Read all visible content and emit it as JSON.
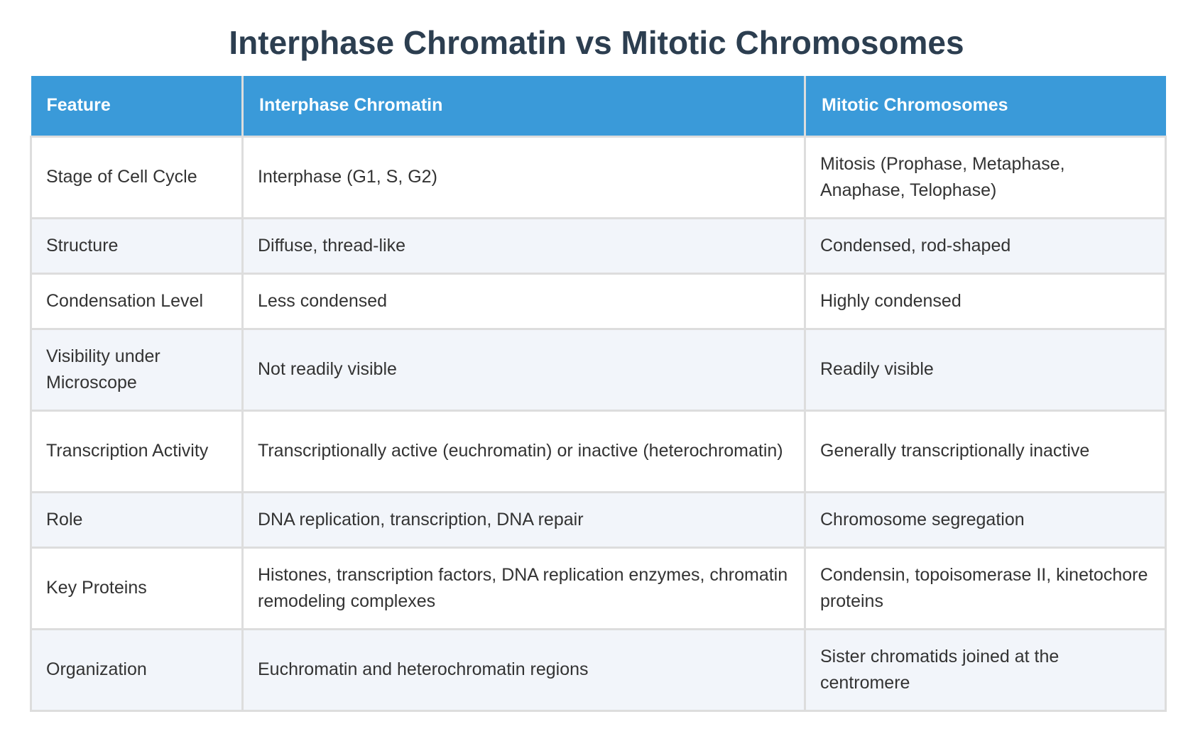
{
  "title": "Interphase Chromatin vs Mitotic Chromosomes",
  "table": {
    "headers": [
      "Feature",
      "Interphase Chromatin",
      "Mitotic Chromosomes"
    ],
    "rows": [
      [
        "Stage of Cell Cycle",
        "Interphase (G1, S, G2)",
        "Mitosis (Prophase, Metaphase, Anaphase, Telophase)"
      ],
      [
        "Structure",
        "Diffuse, thread-like",
        "Condensed, rod-shaped"
      ],
      [
        "Condensation Level",
        "Less condensed",
        "Highly condensed"
      ],
      [
        "Visibility under Microscope",
        "Not readily visible",
        "Readily visible"
      ],
      [
        "Transcription Activity",
        "Transcriptionally active (euchromatin) or inactive (heterochromatin)",
        "Generally transcriptionally inactive"
      ],
      [
        "Role",
        "DNA replication, transcription, DNA repair",
        "Chromosome segregation"
      ],
      [
        "Key Proteins",
        "Histones, transcription factors, DNA replication enzymes, chromatin remodeling complexes",
        "Condensin, topoisomerase II, kinetochore proteins"
      ],
      [
        "Organization",
        "Euchromatin and heterochromatin regions",
        "Sister chromatids joined at the centromere"
      ]
    ]
  }
}
